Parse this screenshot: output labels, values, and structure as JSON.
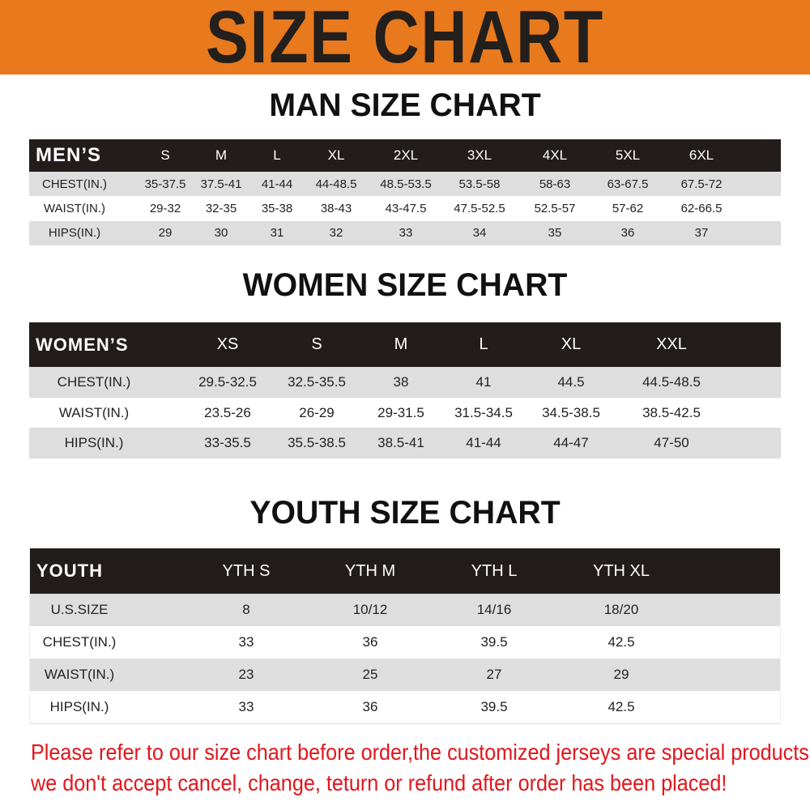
{
  "title": "SIZE CHART",
  "colors": {
    "banner": "#e8791d",
    "header_row": "#221d1a",
    "stripe": "#dedede",
    "notice": "#e3151c"
  },
  "men": {
    "title": "MAN SIZE CHART",
    "header": [
      "MEN’S",
      "S",
      "M",
      "L",
      "XL",
      "2XL",
      "3XL",
      "4XL",
      "5XL",
      "6XL"
    ],
    "rows": [
      [
        "CHEST(IN.)",
        "35-37.5",
        "37.5-41",
        "41-44",
        "44-48.5",
        "48.5-53.5",
        "53.5-58",
        "58-63",
        "63-67.5",
        "67.5-72"
      ],
      [
        "WAIST(IN.)",
        "29-32",
        "32-35",
        "35-38",
        "38-43",
        "43-47.5",
        "47.5-52.5",
        "52.5-57",
        "57-62",
        "62-66.5"
      ],
      [
        "HIPS(IN.)",
        "29",
        "30",
        "31",
        "32",
        "33",
        "34",
        "35",
        "36",
        "37"
      ]
    ]
  },
  "women": {
    "title": "WOMEN SIZE CHART",
    "header": [
      "WOMEN’S",
      "XS",
      "S",
      "M",
      "L",
      "XL",
      "XXL"
    ],
    "rows": [
      [
        "CHEST(IN.)",
        "29.5-32.5",
        "32.5-35.5",
        "38",
        "41",
        "44.5",
        "44.5-48.5"
      ],
      [
        "WAIST(IN.)",
        "23.5-26",
        "26-29",
        "29-31.5",
        "31.5-34.5",
        "34.5-38.5",
        "38.5-42.5"
      ],
      [
        "HIPS(IN.)",
        "33-35.5",
        "35.5-38.5",
        "38.5-41",
        "41-44",
        "44-47",
        "47-50"
      ]
    ]
  },
  "youth": {
    "title": "YOUTH SIZE CHART",
    "header": [
      "YOUTH",
      "YTH S",
      "YTH M",
      "YTH L",
      "YTH XL"
    ],
    "rows": [
      [
        "U.S.SIZE",
        "8",
        "10/12",
        "14/16",
        "18/20"
      ],
      [
        "CHEST(IN.)",
        "33",
        "36",
        "39.5",
        "42.5"
      ],
      [
        "WAIST(IN.)",
        "23",
        "25",
        "27",
        "29"
      ],
      [
        "HIPS(IN.)",
        "33",
        "36",
        "39.5",
        "42.5"
      ]
    ]
  },
  "notice": {
    "line1": "Please refer to our size chart before order,the customized jerseys are special products,",
    "line2": "we don't accept cancel, change, teturn or refund after order has been placed!"
  }
}
